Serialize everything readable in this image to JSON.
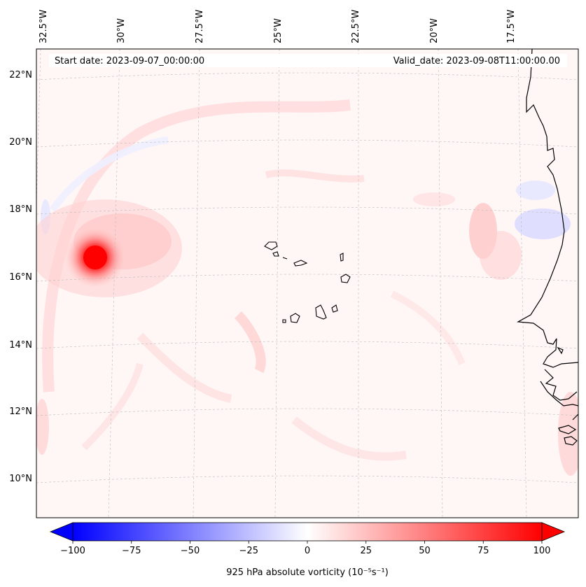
{
  "map": {
    "start_label": "Start date: 2023-09-07_00:00:00",
    "valid_label": "Valid_date: 2023-09-08T11:00:00.00",
    "longitude_labels": [
      "32.5°W",
      "30°W",
      "27.5°W",
      "25°W",
      "22.5°W",
      "20°W",
      "17.5°W"
    ],
    "latitude_labels": [
      "22°N",
      "20°N",
      "18°N",
      "16°N",
      "14°N",
      "12°N",
      "10°N"
    ],
    "coastline_color": "#000000",
    "gridline_color": "#bbbbbb"
  },
  "colorbar": {
    "label": "925 hPa absolute vorticity (10⁻⁵s⁻¹)",
    "range": [
      -100,
      100
    ],
    "ticks": [
      "−100",
      "−75",
      "−50",
      "−25",
      "0",
      "25",
      "50",
      "75",
      "100"
    ],
    "color_min": "#0000ff",
    "color_mid": "#ffffff",
    "color_max": "#ff0000"
  }
}
